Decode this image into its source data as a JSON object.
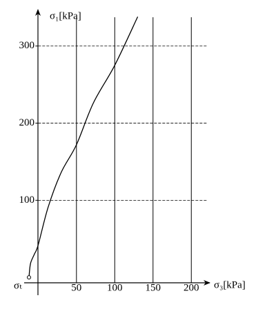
{
  "chart_data": {
    "type": "line",
    "x_label": "σ₃[kPa]",
    "y_label": "σ₁[kPa]",
    "annotation": "σₜ",
    "x": [
      -12,
      -10,
      -5,
      0,
      13,
      30,
      50,
      72,
      100,
      130
    ],
    "series": [
      {
        "color": "#000000",
        "values": [
          0,
          18,
          30,
          42,
          91,
          136,
          172,
          226,
          275,
          338
        ]
      }
    ],
    "xlim": [
      -12,
      225
    ],
    "ylim": [
      -7,
      340
    ],
    "xticks": [
      50,
      100,
      150,
      200
    ],
    "yticks": [
      100,
      200,
      300
    ],
    "grid": true
  }
}
